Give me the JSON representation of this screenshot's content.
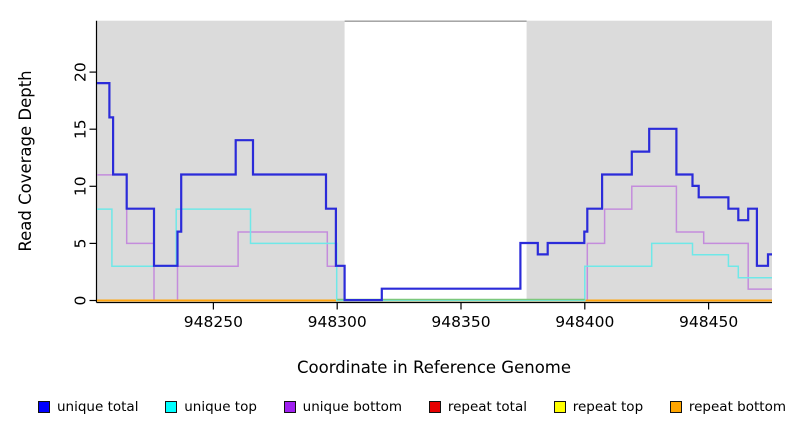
{
  "chart_data": {
    "type": "line",
    "step": true,
    "xlabel": "Coordinate in Reference Genome",
    "ylabel": "Read Coverage Depth",
    "xlim": [
      948203,
      948475.6
    ],
    "ylim": [
      0,
      24.5
    ],
    "x_ticks": [
      948250,
      948300,
      948350,
      948400,
      948450
    ],
    "y_ticks": [
      0,
      5,
      10,
      15,
      20
    ],
    "grid": false,
    "shaded_regions": [
      {
        "from": 948203,
        "to": 948303,
        "color": "#dbdbdb"
      },
      {
        "from": 948376.5,
        "to": 948475.6,
        "color": "#dbdbdb"
      }
    ],
    "gap_border_color": "#999999",
    "series": [
      {
        "name": "repeat total",
        "color": "#dd0000",
        "width": 1.5,
        "points": [
          [
            948203,
            0
          ]
        ]
      },
      {
        "name": "repeat top",
        "color": "#ffe800",
        "width": 1.5,
        "points": [
          [
            948203,
            0
          ]
        ]
      },
      {
        "name": "unique bottom",
        "color": "#c48cdc",
        "width": 1.5,
        "points": [
          [
            948203,
            11
          ],
          [
            948215,
            5
          ],
          [
            948226,
            0
          ],
          [
            948235.5,
            3
          ],
          [
            948260,
            6
          ],
          [
            948296,
            3
          ],
          [
            948303,
            0
          ],
          [
            948401,
            5
          ],
          [
            948408,
            8
          ],
          [
            948419,
            10
          ],
          [
            948437,
            6
          ],
          [
            948448,
            5
          ],
          [
            948466,
            1
          ]
        ]
      },
      {
        "name": "repeat bottom",
        "color": "#ffa40d",
        "width": 2,
        "points": [
          [
            948203,
            0
          ]
        ]
      },
      {
        "name": "unique top",
        "color": "#6fe8e8",
        "width": 1.5,
        "points": [
          [
            948203,
            8
          ],
          [
            948209,
            3
          ],
          [
            948235,
            8
          ],
          [
            948265,
            5
          ],
          [
            948299.8,
            0
          ],
          [
            948400,
            3
          ],
          [
            948427,
            5
          ],
          [
            948443.5,
            4
          ],
          [
            948458,
            3
          ],
          [
            948462,
            2
          ]
        ]
      },
      {
        "name": "unique total",
        "color": "#2b2bd9",
        "width": 2.2,
        "points": [
          [
            948203,
            19
          ],
          [
            948208,
            16
          ],
          [
            948209.5,
            11
          ],
          [
            948215,
            8
          ],
          [
            948226,
            3
          ],
          [
            948235.5,
            6
          ],
          [
            948237,
            11
          ],
          [
            948259,
            14
          ],
          [
            948266,
            11
          ],
          [
            948295.5,
            8
          ],
          [
            948299.5,
            3
          ],
          [
            948303,
            0
          ],
          [
            948318,
            1
          ],
          [
            948374,
            5
          ],
          [
            948381,
            4
          ],
          [
            948385,
            5
          ],
          [
            948399.8,
            6
          ],
          [
            948401,
            8
          ],
          [
            948407,
            11
          ],
          [
            948419,
            13
          ],
          [
            948426,
            15
          ],
          [
            948437,
            11
          ],
          [
            948443.5,
            10
          ],
          [
            948446,
            9
          ],
          [
            948458,
            8
          ],
          [
            948462,
            7
          ],
          [
            948466,
            8
          ],
          [
            948469.5,
            3
          ],
          [
            948474,
            4
          ]
        ]
      }
    ],
    "zero_overlap_segment": {
      "note": "greenish blend where unique-top and repeat-bottom both sit at 0",
      "from": 948300,
      "to": 948400,
      "value": 0,
      "color": "#7cc87c"
    },
    "legend": [
      {
        "label": "unique total",
        "color": "#0000ff"
      },
      {
        "label": "unique top",
        "color": "#00ffff"
      },
      {
        "label": "unique bottom",
        "color": "#a020f0"
      },
      {
        "label": "repeat total",
        "color": "#e60000"
      },
      {
        "label": "repeat top",
        "color": "#ffff00"
      },
      {
        "label": "repeat bottom",
        "color": "#ffa500"
      }
    ]
  }
}
